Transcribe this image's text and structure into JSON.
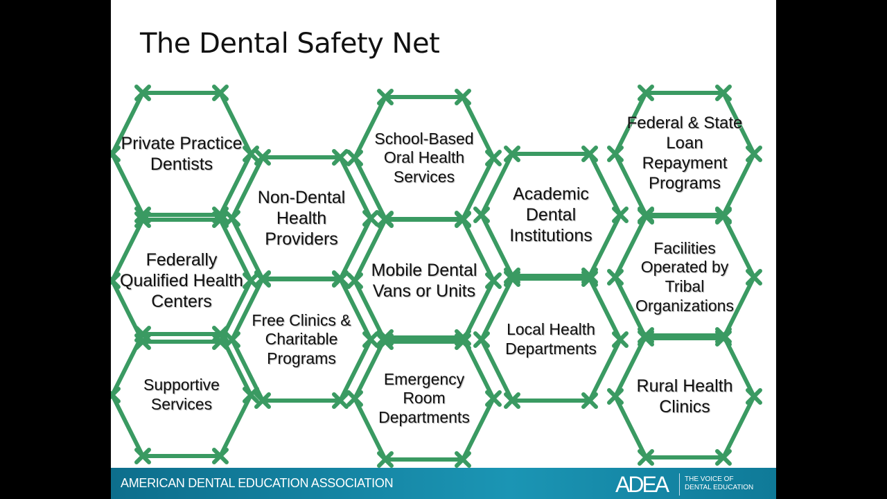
{
  "title": "The Dental Safety Net",
  "colors": {
    "hex_outline": "#3a9a62",
    "footer": "#1786a6"
  },
  "hexagons": [
    {
      "label": "Private Practice Dentists"
    },
    {
      "label": "Federally Qualified Health Centers"
    },
    {
      "label": "Supportive Services"
    },
    {
      "label": "Non-Dental Health Providers"
    },
    {
      "label": "Free Clinics & Charitable Programs"
    },
    {
      "label": "School-Based Oral Health Services"
    },
    {
      "label": "Mobile Dental Vans or Units"
    },
    {
      "label": "Emergency Room Departments"
    },
    {
      "label": "Academic Dental Institutions"
    },
    {
      "label": "Local Health Departments"
    },
    {
      "label": "Federal & State Loan Repayment Programs"
    },
    {
      "label": "Facilities Operated by Tribal Organizations"
    },
    {
      "label": "Rural Health Clinics"
    }
  ],
  "footer": {
    "organization": "AMERICAN DENTAL EDUCATION ASSOCIATION",
    "logo": "ADEA",
    "tagline_1": "THE VOICE OF",
    "tagline_2": "DENTAL EDUCATION"
  }
}
